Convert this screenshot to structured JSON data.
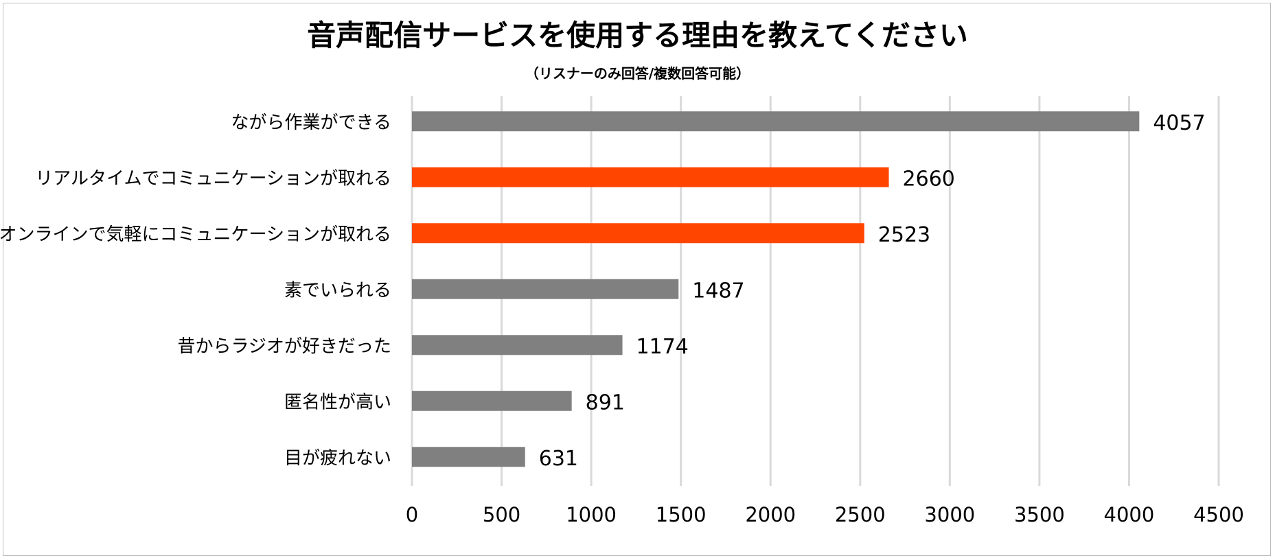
{
  "chart_data": {
    "type": "bar",
    "orientation": "horizontal",
    "title": "音声配信サービスを使用する理由を教えてください",
    "subtitle": "（リスナーのみ回答/複数回答可能）",
    "categories": [
      "ながら作業ができる",
      "リアルタイムでコミュニケーションが取れる",
      "オンラインで気軽にコミュニケーションが取れる",
      "素でいられる",
      "昔からラジオが好きだった",
      "匿名性が高い",
      "目が疲れない"
    ],
    "values": [
      4057,
      2660,
      2523,
      1487,
      1174,
      891,
      631
    ],
    "bar_colors": [
      "#808080",
      "#ff4500",
      "#ff4500",
      "#808080",
      "#808080",
      "#808080",
      "#808080"
    ],
    "xlim": [
      0,
      4500
    ],
    "xticks": [
      0,
      500,
      1000,
      1500,
      2000,
      2500,
      3000,
      3500,
      4000,
      4500
    ],
    "grid": "vertical",
    "legend": "none"
  }
}
